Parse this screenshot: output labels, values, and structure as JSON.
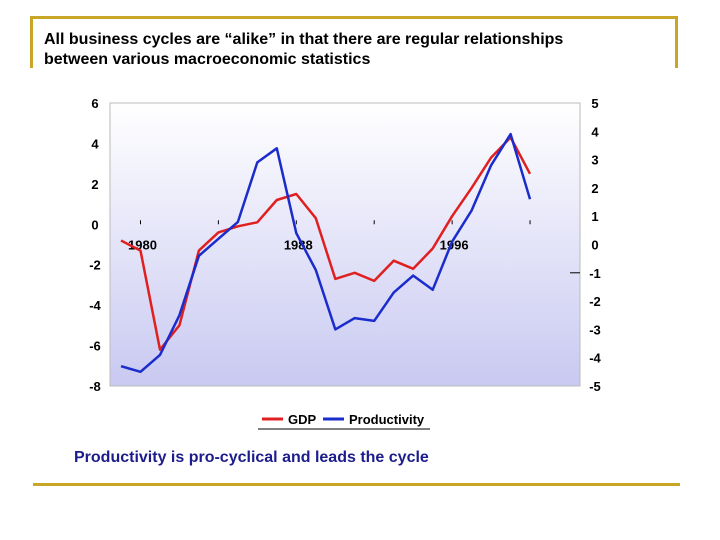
{
  "slide": {
    "title_line1": "All business cycles are “alike” in that there are regular relationships",
    "title_line2": "between various macroeconomic statistics",
    "caption": "Productivity is pro-cyclical and leads the cycle"
  },
  "colors": {
    "gdp": "#e02020",
    "productivity": "#1a2ccc",
    "accent": "#c8a628",
    "caption": "#1c1c8c"
  },
  "chart_data": {
    "type": "line",
    "title": "",
    "x": [
      1979,
      1980,
      1981,
      1982,
      1983,
      1984,
      1985,
      1986,
      1987,
      1988,
      1989,
      1990,
      1991,
      1992,
      1993,
      1994,
      1995,
      1996,
      1997,
      1998,
      1999,
      2000,
      2001,
      2002
    ],
    "x_tick_labels": [
      "1980",
      "1988",
      "1996"
    ],
    "y_left": {
      "ticks": [
        "6",
        "4",
        "2",
        "0",
        "-2",
        "-4",
        "-6",
        "-8"
      ],
      "ylim": [
        -8,
        6
      ]
    },
    "y_right": {
      "ticks": [
        "5",
        "4",
        "3",
        "2",
        "1",
        "0",
        "-1",
        "-2",
        "-3",
        "-4",
        "-5"
      ],
      "ylim": [
        -5,
        5
      ]
    },
    "series": [
      {
        "name": "GDP",
        "axis": "left",
        "values": [
          -0.8,
          -1.3,
          -6.2,
          -5.0,
          -1.3,
          -0.4,
          -0.1,
          0.1,
          1.2,
          1.5,
          0.3,
          -2.7,
          -2.4,
          -2.8,
          -1.8,
          -2.2,
          -1.2,
          0.4,
          1.8,
          3.3,
          4.3,
          2.5,
          null,
          null
        ]
      },
      {
        "name": "Productivity",
        "axis": "right",
        "values": [
          -4.3,
          -4.5,
          -3.9,
          -2.5,
          -0.4,
          0.2,
          0.8,
          2.9,
          3.4,
          0.4,
          -0.9,
          -3.0,
          -2.6,
          -2.7,
          -1.7,
          -1.1,
          -1.6,
          0.1,
          1.2,
          2.8,
          3.9,
          1.6,
          null,
          null
        ]
      }
    ],
    "legend": [
      "GDP",
      "Productivity"
    ],
    "legend_position": "bottom"
  }
}
